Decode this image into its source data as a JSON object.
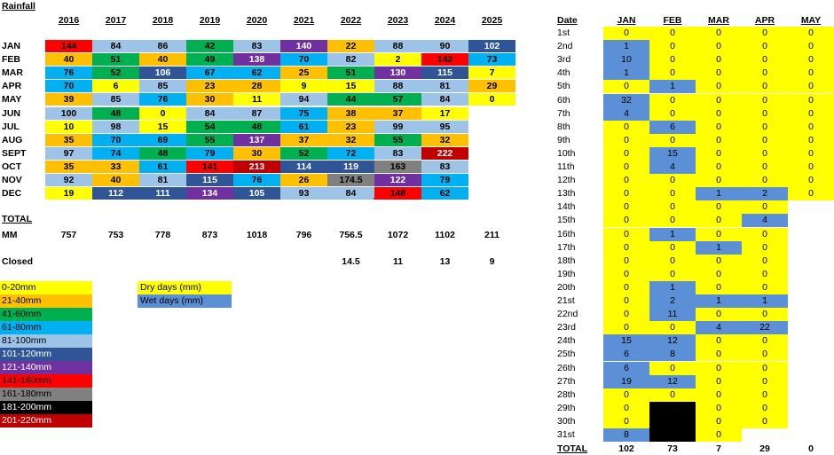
{
  "title": "Rainfall",
  "years": [
    "2016",
    "2017",
    "2018",
    "2019",
    "2020",
    "2021",
    "2022",
    "2023",
    "2024",
    "2025"
  ],
  "months": [
    "JAN",
    "FEB",
    "MAR",
    "APR",
    "MAY",
    "JUN",
    "JUL",
    "AUG",
    "SEPT",
    "OCT",
    "NOV",
    "DEC"
  ],
  "rain": [
    [
      "144",
      "84",
      "86",
      "42",
      "83",
      "140",
      "22",
      "88",
      "90",
      "102"
    ],
    [
      "40",
      "51",
      "40",
      "49",
      "138",
      "70",
      "82",
      "2",
      "142",
      "73"
    ],
    [
      "76",
      "52",
      "106",
      "67",
      "62",
      "25",
      "51",
      "130",
      "115",
      "7"
    ],
    [
      "70",
      "6",
      "85",
      "23",
      "28",
      "9",
      "15",
      "88",
      "81",
      "29"
    ],
    [
      "39",
      "85",
      "76",
      "30",
      "11",
      "94",
      "44",
      "57",
      "84",
      "0"
    ],
    [
      "100",
      "48",
      "0",
      "84",
      "87",
      "75",
      "38",
      "37",
      "17",
      ""
    ],
    [
      "10",
      "98",
      "15",
      "54",
      "48",
      "61",
      "23",
      "99",
      "95",
      ""
    ],
    [
      "35",
      "70",
      "69",
      "55",
      "137",
      "37",
      "32",
      "55",
      "32",
      ""
    ],
    [
      "97",
      "74",
      "48",
      "79",
      "30",
      "52",
      "72",
      "83",
      "222",
      ""
    ],
    [
      "35",
      "33",
      "61",
      "141",
      "213",
      "114",
      "119",
      "163",
      "83",
      ""
    ],
    [
      "92",
      "40",
      "81",
      "115",
      "76",
      "26",
      "174.5",
      "122",
      "79",
      ""
    ],
    [
      "19",
      "112",
      "111",
      "134",
      "105",
      "93",
      "84",
      "148",
      "62",
      ""
    ]
  ],
  "total_label": "TOTAL",
  "mm_label": "MM",
  "totals": [
    "757",
    "753",
    "778",
    "873",
    "1018",
    "796",
    "756.5",
    "1072",
    "1102",
    "211"
  ],
  "closed_label": "Closed",
  "closed": [
    "",
    "",
    "",
    "",
    "",
    "",
    "14.5",
    "11",
    "13",
    "9"
  ],
  "stray_mark": "`",
  "legend": [
    {
      "label": "0-20mm",
      "color": "#ffff00",
      "text": "#000000"
    },
    {
      "label": "21-40mm",
      "color": "#ffc000",
      "text": "#000000"
    },
    {
      "label": "41-60mm",
      "color": "#00b050",
      "text": "#000000"
    },
    {
      "label": "61-80mm",
      "color": "#00b0f0",
      "text": "#000000"
    },
    {
      "label": "81-100mm",
      "color": "#9dc3e6",
      "text": "#000000"
    },
    {
      "label": "101-120mm",
      "color": "#2f5597",
      "text": "#ffffff"
    },
    {
      "label": "121-140mm",
      "color": "#7030a0",
      "text": "#ffffff"
    },
    {
      "label": "141-160mm",
      "color": "#ff0000",
      "text": "#000000"
    },
    {
      "label": "161-180mm",
      "color": "#808080",
      "text": "#000000"
    },
    {
      "label": "181-200mm",
      "color": "#000000",
      "text": "#ffffff"
    },
    {
      "label": "201-220mm",
      "color": "#c00000",
      "text": "#ffffff"
    }
  ],
  "key": {
    "dry_label": "Dry days    (mm)",
    "wet_label": "Wet days    (mm)",
    "dry_color": "#ffff00",
    "wet_color": "#5b8fd6"
  },
  "daily": {
    "date_header": "Date",
    "months": [
      "JAN",
      "FEB",
      "MAR",
      "APR",
      "MAY"
    ],
    "dates": [
      "1st",
      "2nd",
      "3rd",
      "4th",
      "5th",
      "6th",
      "7th",
      "8th",
      "9th",
      "10th",
      "11th",
      "12th",
      "13th",
      "14th",
      "15th",
      "16th",
      "17th",
      "18th",
      "19th",
      "20th",
      "21st",
      "22nd",
      "23rd",
      "24th",
      "25th",
      "26th",
      "27th",
      "28th",
      "29th",
      "30th",
      "31st"
    ],
    "values": [
      [
        "0",
        "0",
        "0",
        "0",
        "0"
      ],
      [
        "1",
        "0",
        "0",
        "0",
        "0"
      ],
      [
        "10",
        "0",
        "0",
        "0",
        "0"
      ],
      [
        "1",
        "0",
        "0",
        "0",
        "0"
      ],
      [
        "0",
        "1",
        "0",
        "0",
        "0"
      ],
      [
        "32",
        "0",
        "0",
        "0",
        "0"
      ],
      [
        "4",
        "0",
        "0",
        "0",
        "0"
      ],
      [
        "0",
        "6",
        "0",
        "0",
        "0"
      ],
      [
        "0",
        "0",
        "0",
        "0",
        "0"
      ],
      [
        "0",
        "15",
        "0",
        "0",
        "0"
      ],
      [
        "0",
        "4",
        "0",
        "0",
        "0"
      ],
      [
        "0",
        "0",
        "0",
        "0",
        "0"
      ],
      [
        "0",
        "0",
        "1",
        "2",
        "0"
      ],
      [
        "0",
        "0",
        "0",
        "0",
        ""
      ],
      [
        "0",
        "0",
        "0",
        "4",
        ""
      ],
      [
        "0",
        "1",
        "0",
        "0",
        ""
      ],
      [
        "0",
        "0",
        "1",
        "0",
        ""
      ],
      [
        "0",
        "0",
        "0",
        "0",
        ""
      ],
      [
        "0",
        "0",
        "0",
        "0",
        ""
      ],
      [
        "0",
        "1",
        "0",
        "0",
        ""
      ],
      [
        "0",
        "2",
        "1",
        "1",
        ""
      ],
      [
        "0",
        "11",
        "0",
        "0",
        ""
      ],
      [
        "0",
        "0",
        "4",
        "22",
        ""
      ],
      [
        "15",
        "12",
        "0",
        "0",
        ""
      ],
      [
        "6",
        "8",
        "0",
        "0",
        ""
      ],
      [
        "6",
        "0",
        "0",
        "0",
        ""
      ],
      [
        "19",
        "12",
        "0",
        "0",
        ""
      ],
      [
        "0",
        "0",
        "0",
        "0",
        ""
      ],
      [
        "0",
        "",
        "0",
        "0",
        ""
      ],
      [
        "0",
        "",
        "0",
        "0",
        ""
      ],
      [
        "8",
        "",
        "0",
        "",
        ""
      ]
    ],
    "total_label": "TOTAL",
    "totals": [
      "102",
      "73",
      "7",
      "29",
      "0"
    ]
  }
}
